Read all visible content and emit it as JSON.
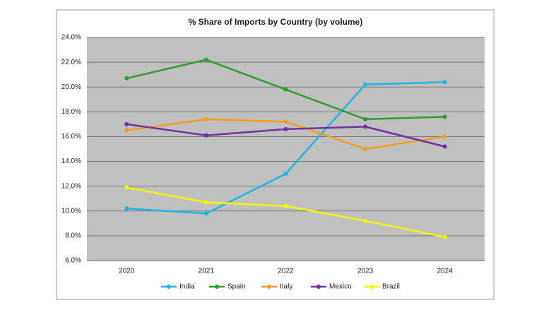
{
  "chart_data": {
    "type": "line",
    "title": "% Share of Imports by Country (by volume)",
    "categories": [
      "2020",
      "2021",
      "2022",
      "2023",
      "2024"
    ],
    "series": [
      {
        "name": "India",
        "color": "#1fb4e8",
        "values": [
          10.2,
          9.8,
          13.0,
          20.2,
          20.4
        ]
      },
      {
        "name": "Spain",
        "color": "#2e9b2e",
        "values": [
          20.7,
          22.2,
          19.8,
          17.4,
          17.6
        ]
      },
      {
        "name": "Italy",
        "color": "#f59c1e",
        "values": [
          16.5,
          17.4,
          17.2,
          15.0,
          16.0
        ]
      },
      {
        "name": "Mexico",
        "color": "#7030a0",
        "values": [
          17.0,
          16.1,
          16.6,
          16.8,
          15.2
        ]
      },
      {
        "name": "Brazil",
        "color": "#f5f500",
        "values": [
          11.9,
          10.7,
          10.4,
          9.2,
          7.9
        ]
      }
    ],
    "ylim": [
      6,
      24
    ],
    "yticks": [
      {
        "value": 6,
        "label": "6.0%"
      },
      {
        "value": 8,
        "label": "8.0%"
      },
      {
        "value": 10,
        "label": "10.0%"
      },
      {
        "value": 12,
        "label": "12.0%"
      },
      {
        "value": 14,
        "label": "14.0%"
      },
      {
        "value": 16,
        "label": "16.0%"
      },
      {
        "value": 18,
        "label": "18.0%"
      },
      {
        "value": 20,
        "label": "20.0%"
      },
      {
        "value": 22,
        "label": "22.0%"
      },
      {
        "value": 24,
        "label": "24.0%"
      }
    ],
    "grid": true,
    "legend": "bottom"
  }
}
